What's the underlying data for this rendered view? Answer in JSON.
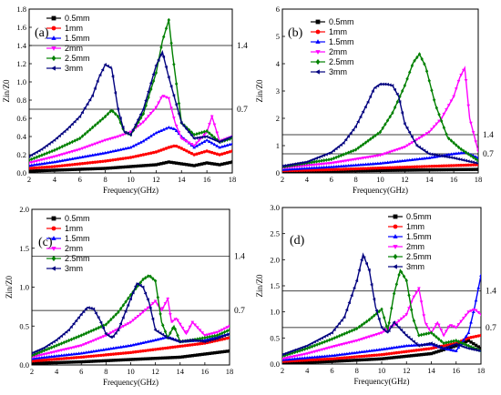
{
  "figure": {
    "xlabel": "Frequency(GHz)",
    "ylabel": "Zin/Z0",
    "reference_lines": [
      {
        "value": 1.4,
        "label": "1.4"
      },
      {
        "value": 0.7,
        "label": "0.7"
      }
    ]
  },
  "colors": {
    "0.5mm": "#000000",
    "1mm": "#ff0000",
    "1.5mm": "#0000ff",
    "2mm": "#ff00ff",
    "2.5mm": "#008000",
    "3mm": "#00007f"
  },
  "chart_data": [
    {
      "type": "line",
      "panel_label": "(a)",
      "xlabel": "Frequency(GHz)",
      "ylabel": "Zin/Z0",
      "xlim": [
        2,
        18
      ],
      "ylim": [
        0,
        1.8
      ],
      "xticks": [
        2,
        4,
        6,
        8,
        10,
        12,
        14,
        16,
        18
      ],
      "yticks": [
        0.0,
        0.2,
        0.4,
        0.6,
        0.8,
        1.0,
        1.2,
        1.4,
        1.6,
        1.8
      ],
      "reference_lines": [
        1.4,
        0.7
      ],
      "legend_position": "top-left",
      "series": [
        {
          "name": "0.5mm",
          "marker": "square",
          "x": [
            2,
            4,
            6,
            8,
            10,
            12,
            13,
            14,
            15,
            16,
            17,
            18
          ],
          "y": [
            0.02,
            0.03,
            0.04,
            0.05,
            0.07,
            0.09,
            0.12,
            0.1,
            0.08,
            0.11,
            0.09,
            0.12
          ]
        },
        {
          "name": "1mm",
          "marker": "circle",
          "x": [
            2,
            4,
            6,
            8,
            10,
            12,
            13,
            13.5,
            14,
            15,
            16,
            17,
            18
          ],
          "y": [
            0.05,
            0.07,
            0.1,
            0.13,
            0.17,
            0.23,
            0.28,
            0.3,
            0.27,
            0.2,
            0.24,
            0.2,
            0.24
          ]
        },
        {
          "name": "1.5mm",
          "marker": "triangle-up",
          "x": [
            2,
            4,
            6,
            8,
            9,
            10,
            11,
            12,
            13,
            13.5,
            14,
            15,
            16,
            17,
            18
          ],
          "y": [
            0.08,
            0.12,
            0.17,
            0.22,
            0.25,
            0.28,
            0.35,
            0.44,
            0.5,
            0.48,
            0.4,
            0.28,
            0.36,
            0.28,
            0.32
          ]
        },
        {
          "name": "2mm",
          "marker": "triangle-down",
          "x": [
            2,
            4,
            6,
            8,
            9,
            10,
            11,
            12,
            12.5,
            13,
            13.5,
            14,
            15,
            16,
            16.4,
            17,
            18
          ],
          "y": [
            0.11,
            0.18,
            0.26,
            0.36,
            0.4,
            0.45,
            0.56,
            0.72,
            0.85,
            0.82,
            0.55,
            0.38,
            0.3,
            0.45,
            0.62,
            0.35,
            0.4
          ]
        },
        {
          "name": "2.5mm",
          "marker": "diamond",
          "x": [
            2,
            4,
            6,
            7,
            8,
            8.5,
            9,
            9.5,
            10,
            11,
            12,
            12.5,
            13,
            13.3,
            14,
            15,
            16,
            17,
            18
          ],
          "y": [
            0.14,
            0.25,
            0.38,
            0.5,
            0.62,
            0.69,
            0.62,
            0.45,
            0.42,
            0.65,
            1.1,
            1.45,
            1.68,
            1.3,
            0.55,
            0.42,
            0.46,
            0.34,
            0.38
          ]
        },
        {
          "name": "3mm",
          "marker": "triangle-left",
          "x": [
            2,
            3,
            4,
            5,
            6,
            7,
            7.5,
            8,
            8.5,
            9,
            9.5,
            10,
            11,
            12,
            12.5,
            13,
            14,
            15,
            16,
            17,
            18
          ],
          "y": [
            0.18,
            0.26,
            0.36,
            0.48,
            0.62,
            0.85,
            1.05,
            1.19,
            1.15,
            0.7,
            0.45,
            0.42,
            0.7,
            1.18,
            1.33,
            1.05,
            0.55,
            0.38,
            0.4,
            0.34,
            0.4
          ]
        }
      ]
    },
    {
      "type": "line",
      "panel_label": "(b)",
      "xlabel": "Frequency(GHz)",
      "ylabel": "Zin/Z0",
      "xlim": [
        2,
        18
      ],
      "ylim": [
        0,
        6
      ],
      "xticks": [
        2,
        4,
        6,
        8,
        10,
        12,
        14,
        16,
        18
      ],
      "yticks": [
        0,
        1,
        2,
        3,
        4,
        5,
        6
      ],
      "reference_lines": [
        1.4,
        0.7
      ],
      "legend_position": "top-left",
      "series": [
        {
          "name": "0.5mm",
          "marker": "square",
          "x": [
            2,
            6,
            10,
            14,
            18
          ],
          "y": [
            0.05,
            0.07,
            0.09,
            0.11,
            0.13
          ]
        },
        {
          "name": "1mm",
          "marker": "circle",
          "x": [
            2,
            6,
            10,
            14,
            18
          ],
          "y": [
            0.08,
            0.12,
            0.18,
            0.24,
            0.3
          ]
        },
        {
          "name": "1.5mm",
          "marker": "triangle-up",
          "x": [
            2,
            6,
            10,
            14,
            16,
            17,
            18
          ],
          "y": [
            0.12,
            0.22,
            0.35,
            0.55,
            0.7,
            0.75,
            0.55
          ]
        },
        {
          "name": "2mm",
          "marker": "triangle-down",
          "x": [
            2,
            6,
            10,
            12,
            14,
            15,
            16,
            16.5,
            16.9,
            17.3,
            18
          ],
          "y": [
            0.18,
            0.36,
            0.65,
            0.95,
            1.5,
            2.0,
            2.8,
            3.5,
            3.85,
            2.0,
            0.8
          ]
        },
        {
          "name": "2.5mm",
          "marker": "diamond",
          "x": [
            2,
            6,
            8,
            10,
            11,
            12,
            12.7,
            13.2,
            13.7,
            14.5,
            15.5,
            16.5,
            18
          ],
          "y": [
            0.22,
            0.5,
            0.85,
            1.5,
            2.2,
            3.2,
            4.05,
            4.35,
            3.9,
            2.5,
            1.3,
            0.9,
            0.45
          ]
        },
        {
          "name": "3mm",
          "marker": "triangle-left",
          "x": [
            2,
            4,
            6,
            7,
            8,
            9,
            9.5,
            10,
            10.5,
            11,
            11.5,
            12,
            13,
            14,
            16,
            18
          ],
          "y": [
            0.25,
            0.4,
            0.75,
            1.1,
            1.7,
            2.6,
            3.1,
            3.25,
            3.25,
            3.2,
            2.8,
            1.8,
            1.0,
            0.7,
            0.55,
            0.35
          ]
        }
      ]
    },
    {
      "type": "line",
      "panel_label": "(c)",
      "xlabel": "Frequency(GHz)",
      "ylabel": "Zin/Z0",
      "xlim": [
        2,
        18
      ],
      "ylim": [
        0,
        2.0
      ],
      "xticks": [
        2,
        4,
        6,
        8,
        10,
        12,
        14,
        16,
        18
      ],
      "yticks": [
        0.0,
        0.5,
        1.0,
        1.5,
        2.0
      ],
      "reference_lines": [
        1.4,
        0.7
      ],
      "legend_position": "top-left",
      "series": [
        {
          "name": "0.5mm",
          "marker": "square",
          "x": [
            2,
            6,
            10,
            14,
            18
          ],
          "y": [
            0.02,
            0.04,
            0.07,
            0.1,
            0.18
          ]
        },
        {
          "name": "1mm",
          "marker": "circle",
          "x": [
            2,
            6,
            10,
            12,
            14,
            16,
            18
          ],
          "y": [
            0.05,
            0.1,
            0.16,
            0.2,
            0.24,
            0.28,
            0.35
          ]
        },
        {
          "name": "1.5mm",
          "marker": "triangle-up",
          "x": [
            2,
            6,
            10,
            12,
            13,
            14,
            16,
            18
          ],
          "y": [
            0.08,
            0.15,
            0.25,
            0.32,
            0.36,
            0.3,
            0.32,
            0.4
          ]
        },
        {
          "name": "2mm",
          "marker": "triangle-down",
          "x": [
            2,
            6,
            8,
            10,
            11,
            12,
            12.5,
            13,
            13.3,
            13.7,
            14.5,
            15,
            16,
            17,
            18
          ],
          "y": [
            0.1,
            0.25,
            0.38,
            0.55,
            0.68,
            0.82,
            0.7,
            0.85,
            0.55,
            0.6,
            0.4,
            0.55,
            0.38,
            0.42,
            0.5
          ]
        },
        {
          "name": "2.5mm",
          "marker": "diamond",
          "x": [
            2,
            4,
            6,
            7,
            8,
            9,
            10,
            11,
            11.5,
            12,
            12.5,
            13,
            13.5,
            14,
            15,
            16,
            17,
            18
          ],
          "y": [
            0.12,
            0.25,
            0.38,
            0.45,
            0.52,
            0.68,
            0.9,
            1.1,
            1.15,
            1.08,
            0.55,
            0.35,
            0.5,
            0.3,
            0.32,
            0.35,
            0.38,
            0.45
          ]
        },
        {
          "name": "3mm",
          "marker": "triangle-left",
          "x": [
            2,
            3,
            4,
            5,
            6,
            6.5,
            7,
            7.5,
            8,
            8.5,
            9,
            10,
            10.5,
            11,
            11.5,
            12,
            13,
            14,
            15,
            16,
            17,
            18
          ],
          "y": [
            0.15,
            0.22,
            0.32,
            0.45,
            0.65,
            0.74,
            0.72,
            0.58,
            0.4,
            0.35,
            0.45,
            0.85,
            1.05,
            1.0,
            0.8,
            0.45,
            0.35,
            0.3,
            0.32,
            0.3,
            0.34,
            0.4
          ]
        }
      ]
    },
    {
      "type": "line",
      "panel_label": "(d)",
      "xlabel": "Frequency(GHz)",
      "ylabel": "Zin/Z0",
      "xlim": [
        2,
        18
      ],
      "ylim": [
        0,
        3.0
      ],
      "xticks": [
        2,
        4,
        6,
        8,
        10,
        12,
        14,
        16,
        18
      ],
      "yticks": [
        0.0,
        0.5,
        1.0,
        1.5,
        2.0,
        2.5,
        3.0
      ],
      "reference_lines": [
        1.4,
        0.7
      ],
      "legend_position": "top-right",
      "series": [
        {
          "name": "0.5mm",
          "marker": "square",
          "x": [
            2,
            6,
            10,
            14,
            16,
            17,
            18
          ],
          "y": [
            0.02,
            0.05,
            0.1,
            0.2,
            0.35,
            0.45,
            0.3
          ]
        },
        {
          "name": "1mm",
          "marker": "circle",
          "x": [
            2,
            6,
            10,
            14,
            16,
            17,
            18
          ],
          "y": [
            0.05,
            0.1,
            0.18,
            0.3,
            0.4,
            0.5,
            0.55
          ]
        },
        {
          "name": "1.5mm",
          "marker": "triangle-up",
          "x": [
            2,
            6,
            10,
            12,
            14,
            15,
            16,
            17,
            17.5,
            18
          ],
          "y": [
            0.08,
            0.16,
            0.28,
            0.35,
            0.38,
            0.3,
            0.25,
            0.6,
            1.1,
            1.7
          ]
        },
        {
          "name": "2mm",
          "marker": "triangle-down",
          "x": [
            2,
            4,
            6,
            8,
            10,
            11,
            12,
            12.5,
            13,
            13.5,
            14,
            14.5,
            15,
            15.5,
            16,
            17,
            17.5,
            18
          ],
          "y": [
            0.1,
            0.2,
            0.33,
            0.45,
            0.6,
            0.75,
            0.95,
            1.25,
            1.45,
            0.8,
            0.6,
            0.8,
            0.55,
            0.75,
            0.7,
            1.0,
            1.05,
            0.95
          ]
        },
        {
          "name": "2.5mm",
          "marker": "diamond",
          "x": [
            2,
            4,
            6,
            7,
            8,
            9,
            10,
            10.5,
            11,
            11.5,
            12,
            12.5,
            13,
            14,
            15,
            16,
            17,
            18
          ],
          "y": [
            0.15,
            0.3,
            0.48,
            0.58,
            0.68,
            0.85,
            1.05,
            0.65,
            1.35,
            1.8,
            1.6,
            0.9,
            0.55,
            0.6,
            0.4,
            0.45,
            0.35,
            0.25
          ]
        },
        {
          "name": "3mm",
          "marker": "triangle-left",
          "x": [
            2,
            4,
            6,
            7,
            8,
            8.5,
            9,
            9.5,
            10,
            10.5,
            11,
            12,
            13,
            14,
            15,
            16,
            17,
            18
          ],
          "y": [
            0.18,
            0.35,
            0.6,
            0.9,
            1.6,
            2.1,
            1.8,
            1.1,
            0.7,
            0.6,
            0.8,
            0.55,
            0.35,
            0.4,
            0.3,
            0.38,
            0.3,
            0.25
          ]
        }
      ]
    }
  ]
}
